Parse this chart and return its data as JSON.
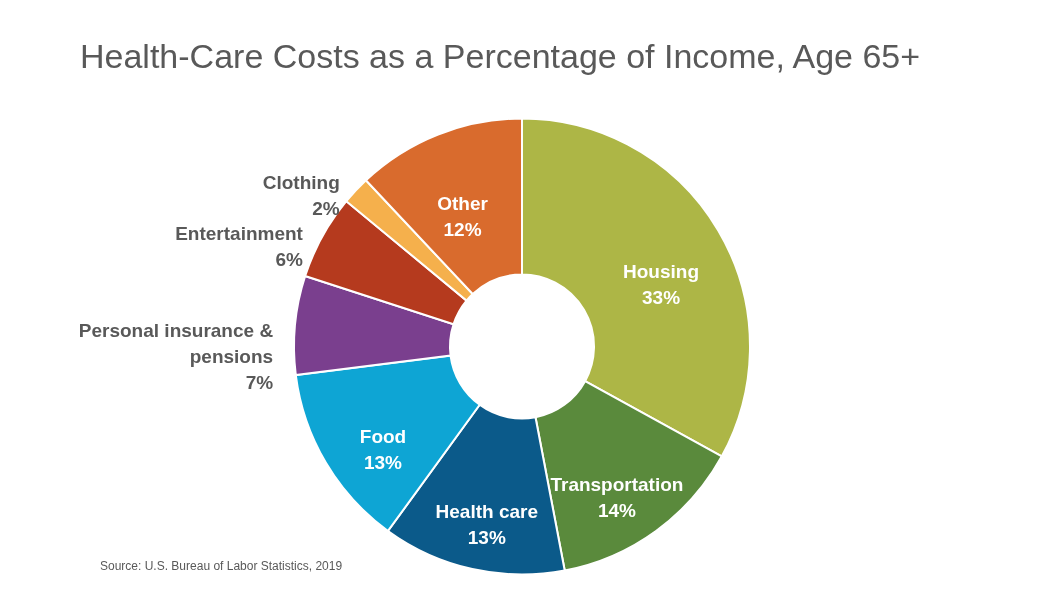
{
  "chart_data": {
    "type": "donut",
    "title": "Health-Care Costs as a Percentage of Income, Age 65+",
    "categories": [
      "Housing",
      "Transportation",
      "Health care",
      "Food",
      "Personal insurance & pensions",
      "Entertainment",
      "Clothing",
      "Other"
    ],
    "values": [
      33,
      14,
      13,
      13,
      7,
      6,
      2,
      12
    ],
    "colors": [
      "#adb646",
      "#5a8a3c",
      "#0b5a8a",
      "#0ea5d4",
      "#7a3f8e",
      "#b53a1e",
      "#f5b04c",
      "#d96b2d"
    ],
    "value_labels": [
      "33%",
      "14%",
      "13%",
      "13%",
      "7%",
      "6%",
      "2%",
      "12%"
    ],
    "annotations": [
      "Source:  U.S. Bureau of Labor Statistics, 2019"
    ]
  }
}
